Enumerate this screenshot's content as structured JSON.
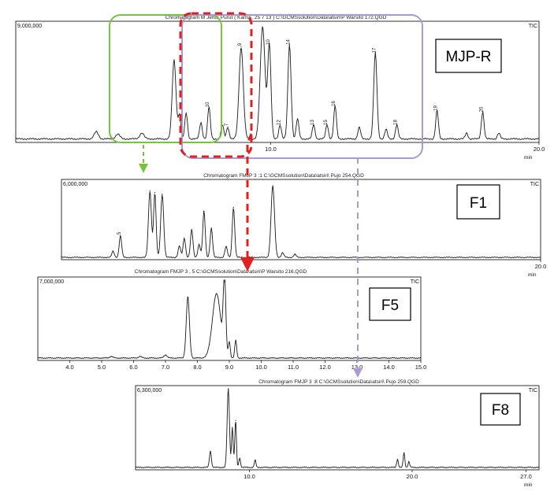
{
  "figure": {
    "boxes": [
      {
        "id": "mjp",
        "label": "MJP-R"
      },
      {
        "id": "f1",
        "label": "F1"
      },
      {
        "id": "f5",
        "label": "F5"
      },
      {
        "id": "f8",
        "label": "F8"
      }
    ]
  },
  "chart_data": [
    {
      "type": "line",
      "id": "mjp",
      "title": "Chromatogram M Jeruk Purut ( Kamis, 25 7 13 ) C:\\GCMSsolution\\Data\\atsiri\\P Warsito 172.QGD",
      "ymax_label": "9,000,000",
      "signal": "TIC",
      "xlabel": "min",
      "xlim": [
        0.5,
        20.0
      ],
      "ylim": [
        0,
        9000000
      ],
      "ticks": [
        {
          "v": 10.0,
          "label": "10.0"
        },
        {
          "v": 20.0,
          "label": "20.0"
        }
      ],
      "baseline": 0.03,
      "peaks": [
        {
          "t": 3.5,
          "h": 0.06,
          "w": 0.08
        },
        {
          "t": 4.3,
          "h": 0.04,
          "w": 0.08
        },
        {
          "t": 5.2,
          "h": 0.05,
          "w": 0.08
        },
        {
          "t": 6.4,
          "h": 0.67,
          "w": 0.07,
          "label": ""
        },
        {
          "t": 6.6,
          "h": 0.2,
          "w": 0.05,
          "label": ""
        },
        {
          "t": 6.85,
          "h": 0.22,
          "w": 0.05,
          "label": ""
        },
        {
          "t": 7.4,
          "h": 0.14,
          "w": 0.05
        },
        {
          "t": 7.7,
          "h": 0.27,
          "w": 0.05,
          "label": "10"
        },
        {
          "t": 8.2,
          "h": 0.12,
          "w": 0.05
        },
        {
          "t": 8.4,
          "h": 0.1,
          "w": 0.05,
          "label": "7"
        },
        {
          "t": 8.9,
          "h": 0.78,
          "w": 0.08,
          "label": "9"
        },
        {
          "t": 9.7,
          "h": 0.95,
          "w": 0.09
        },
        {
          "t": 9.95,
          "h": 0.8,
          "w": 0.06,
          "label": "10"
        },
        {
          "t": 10.35,
          "h": 0.12,
          "w": 0.05,
          "label": "12"
        },
        {
          "t": 10.7,
          "h": 0.8,
          "w": 0.06,
          "label": "14"
        },
        {
          "t": 11.0,
          "h": 0.17,
          "w": 0.05,
          "label": ""
        },
        {
          "t": 11.6,
          "h": 0.12,
          "w": 0.05,
          "label": "13"
        },
        {
          "t": 12.1,
          "h": 0.12,
          "w": 0.05,
          "label": "15"
        },
        {
          "t": 12.4,
          "h": 0.28,
          "w": 0.05,
          "label": "16"
        },
        {
          "t": 13.3,
          "h": 0.1,
          "w": 0.05
        },
        {
          "t": 13.9,
          "h": 0.73,
          "w": 0.06,
          "label": "17"
        },
        {
          "t": 14.3,
          "h": 0.08,
          "w": 0.05
        },
        {
          "t": 14.7,
          "h": 0.12,
          "w": 0.05,
          "label": "18"
        },
        {
          "t": 16.2,
          "h": 0.24,
          "w": 0.05,
          "label": "19"
        },
        {
          "t": 17.3,
          "h": 0.05,
          "w": 0.05
        },
        {
          "t": 17.9,
          "h": 0.23,
          "w": 0.05,
          "label": "20"
        },
        {
          "t": 18.5,
          "h": 0.05,
          "w": 0.05
        }
      ]
    },
    {
      "type": "line",
      "id": "f1",
      "title": "Chromatogram FMJP 3 :1 C:\\GCMSsolution\\Data\\atsiri\\ Pujo 254.QGD",
      "ymax_label": "6,000,000",
      "signal": "TIC",
      "xlabel": "min",
      "xlim": [
        0.5,
        20.0
      ],
      "ylim": [
        0,
        6000000
      ],
      "ticks": [
        {
          "v": 20.0,
          "label": "20.0"
        }
      ],
      "baseline": 0.03,
      "peaks": [
        {
          "t": 2.6,
          "h": 0.08,
          "w": 0.05,
          "label": ""
        },
        {
          "t": 2.9,
          "h": 0.28,
          "w": 0.05,
          "label": "5"
        },
        {
          "t": 4.1,
          "h": 0.86,
          "w": 0.06,
          "label": ""
        },
        {
          "t": 4.3,
          "h": 0.84,
          "w": 0.05,
          "label": ""
        },
        {
          "t": 4.6,
          "h": 0.82,
          "w": 0.06,
          "label": ""
        },
        {
          "t": 5.3,
          "h": 0.15,
          "w": 0.05
        },
        {
          "t": 5.5,
          "h": 0.25,
          "w": 0.05,
          "label": ""
        },
        {
          "t": 5.8,
          "h": 0.36,
          "w": 0.05,
          "label": ""
        },
        {
          "t": 6.1,
          "h": 0.17,
          "w": 0.05
        },
        {
          "t": 6.3,
          "h": 0.6,
          "w": 0.05,
          "label": ""
        },
        {
          "t": 6.6,
          "h": 0.38,
          "w": 0.05,
          "label": ""
        },
        {
          "t": 7.2,
          "h": 0.14,
          "w": 0.05,
          "label": ""
        },
        {
          "t": 7.5,
          "h": 0.65,
          "w": 0.05,
          "label": ""
        },
        {
          "t": 9.1,
          "h": 0.93,
          "w": 0.07,
          "label": ""
        },
        {
          "t": 9.5,
          "h": 0.06,
          "w": 0.05,
          "label": ""
        },
        {
          "t": 10.0,
          "h": 0.04,
          "w": 0.05,
          "label": ""
        }
      ]
    },
    {
      "type": "line",
      "id": "f5",
      "title": "Chromatogram FMJP 3 , 5 C:\\GCMSsolution\\Data\\atsiri\\P Warsito 216.QGD",
      "ymax_label": "7,000,000",
      "signal": "TIC",
      "xlabel": "",
      "xlim": [
        3.0,
        15.0
      ],
      "ylim": [
        0,
        7000000
      ],
      "ticks": [
        {
          "v": 4.0,
          "label": "4.0"
        },
        {
          "v": 5.0,
          "label": "5.0"
        },
        {
          "v": 6.0,
          "label": "6.0"
        },
        {
          "v": 7.0,
          "label": "7.0"
        },
        {
          "v": 8.0,
          "label": "8.0"
        },
        {
          "v": 9.0,
          "label": "9.0"
        },
        {
          "v": 10.0,
          "label": "10.0"
        },
        {
          "v": 11.0,
          "label": "11.0"
        },
        {
          "v": 12.0,
          "label": "12.0"
        },
        {
          "v": 13.0,
          "label": "13.0"
        },
        {
          "v": 14.0,
          "label": "14.0"
        },
        {
          "v": 15.0,
          "label": "15.0"
        }
      ],
      "baseline": 0.03,
      "peaks": [
        {
          "t": 5.3,
          "h": 0.02,
          "w": 0.05
        },
        {
          "t": 6.2,
          "h": 0.02,
          "w": 0.05
        },
        {
          "t": 7.0,
          "h": 0.04,
          "w": 0.05
        },
        {
          "t": 7.7,
          "h": 0.76,
          "w": 0.05,
          "label": ""
        },
        {
          "t": 8.6,
          "h": 0.8,
          "w": 0.13
        },
        {
          "t": 8.85,
          "h": 0.95,
          "w": 0.04,
          "label": ""
        },
        {
          "t": 9.0,
          "h": 0.2,
          "w": 0.03,
          "label": ""
        },
        {
          "t": 9.2,
          "h": 0.22,
          "w": 0.03,
          "label": ""
        }
      ]
    },
    {
      "type": "line",
      "id": "f8",
      "title": "Chromatogram FMJP 3 :8 C:\\GCMSsolution\\Data\\atsiri\\ Pujo 259.QGD",
      "ymax_label": "6,300,000",
      "signal": "TIC",
      "xlabel": "min",
      "xlim": [
        3.0,
        27.8
      ],
      "ylim": [
        0,
        6300000
      ],
      "ticks": [
        {
          "v": 10.0,
          "label": "10.0"
        },
        {
          "v": 20.0,
          "label": "20.0"
        },
        {
          "v": 27.0,
          "label": "27.0"
        }
      ],
      "baseline": 0.03,
      "peaks": [
        {
          "t": 7.6,
          "h": 0.2,
          "w": 0.06,
          "label": ""
        },
        {
          "t": 8.7,
          "h": 0.98,
          "w": 0.07,
          "label": ""
        },
        {
          "t": 8.95,
          "h": 0.5,
          "w": 0.05
        },
        {
          "t": 9.15,
          "h": 0.58,
          "w": 0.05,
          "label": ""
        },
        {
          "t": 9.4,
          "h": 0.12,
          "w": 0.05
        },
        {
          "t": 10.35,
          "h": 0.09,
          "w": 0.05,
          "label": ""
        },
        {
          "t": 19.1,
          "h": 0.1,
          "w": 0.05,
          "label": ""
        },
        {
          "t": 19.5,
          "h": 0.18,
          "w": 0.05,
          "label": ""
        },
        {
          "t": 19.8,
          "h": 0.07,
          "w": 0.05,
          "label": ""
        }
      ]
    }
  ]
}
